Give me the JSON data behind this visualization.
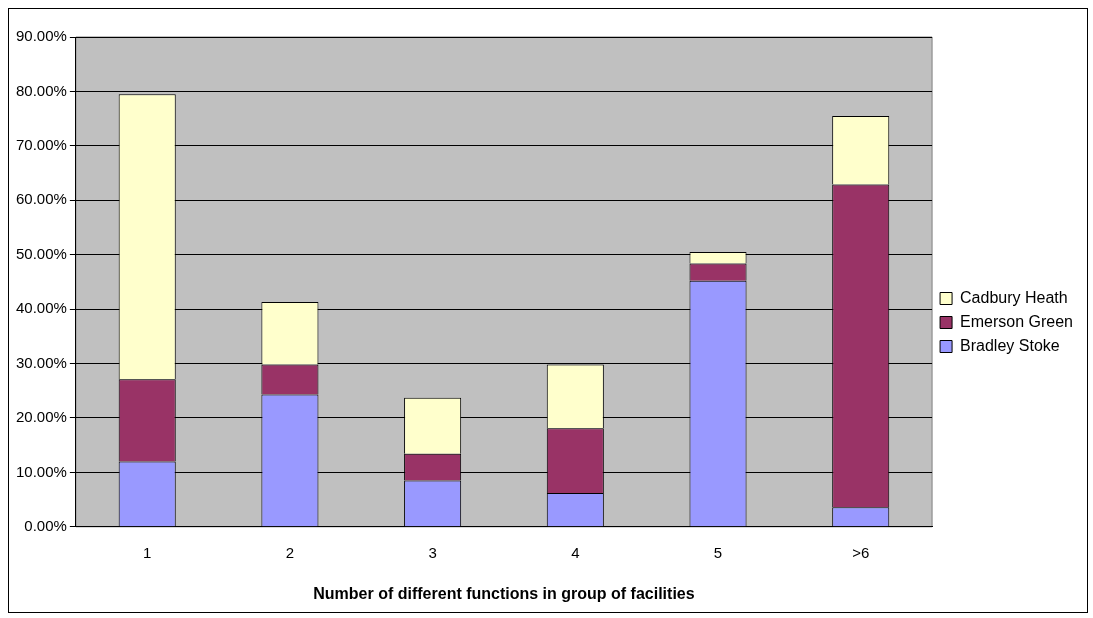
{
  "chart_data": {
    "type": "bar",
    "stacked": true,
    "xlabel": "Number of different functions in group of facilities",
    "categories": [
      "1",
      "2",
      "3",
      "4",
      "5",
      ">6"
    ],
    "series": [
      {
        "name": "Bradley Stoke",
        "color": "#9999ff",
        "values": [
          12,
          24.3,
          8.5,
          6.2,
          45.2,
          3.6
        ]
      },
      {
        "name": "Emerson Green",
        "color": "#993366",
        "values": [
          15.1,
          5.5,
          4.9,
          11.9,
          3.2,
          59.3
        ]
      },
      {
        "name": "Cadbury Heath",
        "color": "#ffffcc",
        "values": [
          52.4,
          11.5,
          10.3,
          11.7,
          2.1,
          12.6
        ]
      }
    ],
    "ylim": [
      0,
      90
    ],
    "yticks": [
      {
        "value": 0,
        "label": "0.00%"
      },
      {
        "value": 10,
        "label": "10.00%"
      },
      {
        "value": 20,
        "label": "20.00%"
      },
      {
        "value": 30,
        "label": "30.00%"
      },
      {
        "value": 40,
        "label": "40.00%"
      },
      {
        "value": 50,
        "label": "50.00%"
      },
      {
        "value": 60,
        "label": "60.00%"
      },
      {
        "value": 70,
        "label": "70.00%"
      },
      {
        "value": 80,
        "label": "80.00%"
      },
      {
        "value": 90,
        "label": "90.00%"
      }
    ],
    "grid": "y",
    "legend": "right"
  }
}
